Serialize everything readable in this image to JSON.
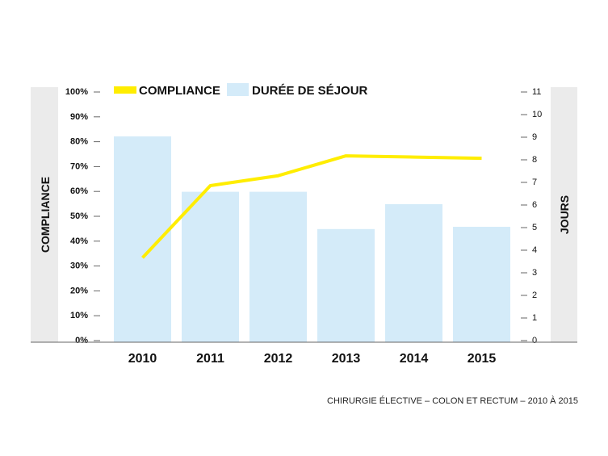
{
  "chart_data": {
    "type": "bar+line",
    "categories": [
      "2010",
      "2011",
      "2012",
      "2013",
      "2014",
      "2015"
    ],
    "series": [
      {
        "name": "DURÉE DE SÉJOUR",
        "kind": "bar",
        "axis": "right",
        "color": "#d4ebf9",
        "values": [
          9.0,
          6.55,
          6.55,
          4.9,
          6.0,
          5.0
        ]
      },
      {
        "name": "COMPLIANCE",
        "kind": "line",
        "axis": "left",
        "color": "#ffed00",
        "values": [
          33,
          62,
          66,
          74,
          73.5,
          73
        ]
      }
    ],
    "y_left": {
      "label": "COMPLIANCE",
      "ylim": [
        0,
        100
      ],
      "ticks": [
        "0%",
        "10%",
        "20%",
        "30%",
        "40%",
        "50%",
        "60%",
        "70%",
        "80%",
        "90%",
        "100%"
      ]
    },
    "y_right": {
      "label": "JOURS",
      "ylim": [
        0,
        11
      ],
      "ticks": [
        "0",
        "1",
        "2",
        "3",
        "4",
        "5",
        "6",
        "7",
        "8",
        "9",
        "10",
        "11"
      ]
    },
    "legend": {
      "placement": "top-left",
      "entries": [
        {
          "label": "COMPLIANCE",
          "color": "#ffed00"
        },
        {
          "label": "DURÉE DE SÉJOUR",
          "color": "#d4ebf9"
        }
      ]
    },
    "caption": "CHIRURGIE ÉLECTIVE – COLON ET RECTUM – 2010 À 2015",
    "grid": false
  }
}
